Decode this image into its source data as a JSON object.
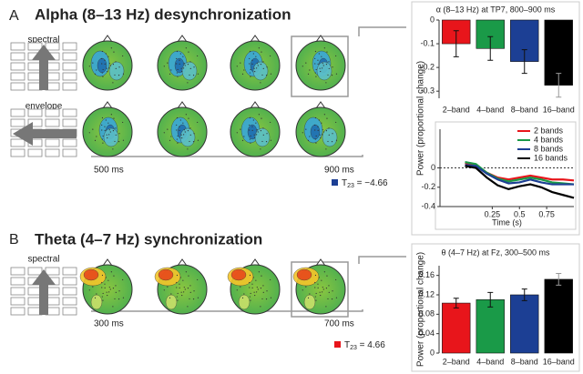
{
  "figure": {
    "panel_a": {
      "letter": "A",
      "title": "Alpha (8–13 Hz) desynchronization",
      "rows": [
        "spectral",
        "envelope"
      ],
      "times": [
        "500 ms",
        "900 ms"
      ],
      "stat": {
        "symbol": "T",
        "subscript": "23",
        "text": " = −4.66"
      },
      "ylabel": "Power (proportional change)"
    },
    "panel_b": {
      "letter": "B",
      "title": "Theta (4–7 Hz) synchronization",
      "rows": [
        "spectral"
      ],
      "times": [
        "300 ms",
        "700 ms"
      ],
      "stat": {
        "symbol": "T",
        "subscript": "23",
        "text": " = 4.66"
      }
    }
  },
  "chart_data": [
    {
      "type": "bar",
      "title": "α (8–13 Hz) at TP7, 800–900 ms",
      "categories": [
        "2–band",
        "4–band",
        "8–band",
        "16–band"
      ],
      "values": [
        -0.1,
        -0.12,
        -0.175,
        -0.275
      ],
      "errors": [
        0.055,
        0.05,
        0.05,
        0.05
      ],
      "colors": [
        "#e8151b",
        "#1a9a48",
        "#1c3f94",
        "#000000"
      ],
      "ylim": [
        -0.33,
        0
      ],
      "yticks": [
        0,
        -0.1,
        -0.2,
        -0.3
      ]
    },
    {
      "type": "line",
      "xlabel": "Time (s)",
      "x": [
        0,
        0.1,
        0.2,
        0.3,
        0.4,
        0.5,
        0.6,
        0.7,
        0.8,
        0.9,
        1.0
      ],
      "series": [
        {
          "name": "2 bands",
          "color": "#e8151b",
          "values": [
            0.05,
            0.03,
            -0.05,
            -0.1,
            -0.12,
            -0.1,
            -0.08,
            -0.1,
            -0.12,
            -0.12,
            -0.13
          ]
        },
        {
          "name": "4 bands",
          "color": "#1a9a48",
          "values": [
            0.06,
            0.04,
            -0.05,
            -0.11,
            -0.14,
            -0.12,
            -0.1,
            -0.12,
            -0.15,
            -0.16,
            -0.17
          ]
        },
        {
          "name": "8 bands",
          "color": "#1c3f94",
          "values": [
            0.03,
            0.02,
            -0.06,
            -0.12,
            -0.16,
            -0.15,
            -0.12,
            -0.15,
            -0.17,
            -0.17,
            -0.17
          ]
        },
        {
          "name": "16 bands",
          "color": "#000000",
          "values": [
            0.02,
            0.0,
            -0.1,
            -0.18,
            -0.22,
            -0.19,
            -0.17,
            -0.2,
            -0.25,
            -0.28,
            -0.31
          ]
        }
      ],
      "xlim": [
        -0.23,
        1.0
      ],
      "ylim": [
        -0.4,
        0.4
      ],
      "xticks": [
        0.25,
        0.5,
        0.75
      ],
      "yticks": [
        0,
        -0.2,
        -0.4
      ],
      "zero_line": true,
      "legend": "upper-right"
    },
    {
      "type": "bar",
      "title": "θ (4–7 Hz) at Fz, 300–500 ms",
      "ylabel": "Power (proportional change)",
      "categories": [
        "2–band",
        "4–band",
        "8–band",
        "16–band"
      ],
      "values": [
        0.103,
        0.11,
        0.12,
        0.152
      ],
      "errors": [
        0.01,
        0.015,
        0.012,
        0.012
      ],
      "colors": [
        "#e8151b",
        "#1a9a48",
        "#1c3f94",
        "#000000"
      ],
      "ylim": [
        0,
        0.18
      ],
      "yticks": [
        0,
        0.04,
        0.08,
        0.12,
        0.16
      ]
    }
  ]
}
